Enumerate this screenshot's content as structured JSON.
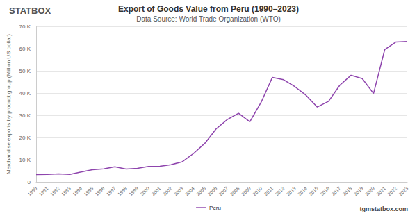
{
  "chart_data": {
    "type": "line",
    "title": "Export of Goods Value from Peru (1990–2023)",
    "subtitle": "Data Source: World Trade Organization (WTO)",
    "logo": "STATBOX",
    "watermark": "tgmstatbox.com",
    "y_label": "Merchandise exports by product group (Million US dollar)",
    "categories": [
      "1990",
      "1991",
      "1992",
      "1993",
      "1994",
      "1995",
      "1996",
      "1997",
      "1998",
      "1999",
      "2000",
      "2001",
      "2002",
      "2003",
      "2004",
      "2005",
      "2006",
      "2007",
      "2008",
      "2009",
      "2010",
      "2011",
      "2012",
      "2013",
      "2014",
      "2015",
      "2016",
      "2017",
      "2018",
      "2019",
      "2020",
      "2021",
      "2022",
      "2023"
    ],
    "series": [
      {
        "name": "Peru",
        "color": "#8e44ad",
        "values": [
          3280,
          3390,
          3580,
          3380,
          4420,
          5490,
          5880,
          6820,
          5760,
          6090,
          6950,
          7030,
          7710,
          9090,
          12810,
          17370,
          23830,
          28090,
          30880,
          27070,
          35800,
          47000,
          46000,
          42900,
          39000,
          33700,
          36300,
          43500,
          48000,
          46500,
          39800,
          59600,
          63000,
          63200
        ]
      }
    ],
    "ylim": [
      0,
      70000
    ],
    "yticks": [
      0,
      {
        "value": 10000,
        "label": "10 K"
      },
      {
        "value": 20000,
        "label": "20 K"
      },
      {
        "value": 30000,
        "label": "30 K"
      },
      {
        "value": 40000,
        "label": "40 K"
      },
      {
        "value": 50000,
        "label": "50 K"
      },
      {
        "value": 60000,
        "label": "60 K"
      },
      {
        "value": 70000,
        "label": "70 K"
      }
    ],
    "grid": true,
    "legend": "bottom"
  }
}
